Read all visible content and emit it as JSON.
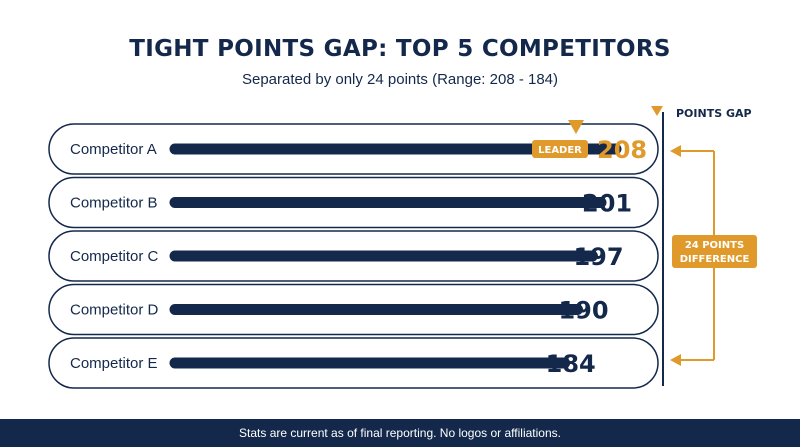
{
  "title": "TIGHT POINTS GAP: TOP 5 COMPETITORS",
  "subtitle": "Separated by only 24 points (Range: 208 - 184)",
  "footer": "Stats are current as of final reporting. No logos or affiliations.",
  "gap_panel": {
    "title": "POINTS GAP",
    "label_line1": "24 POINTS",
    "label_line2": "DIFFERENCE"
  },
  "leader_badge": "LEADER",
  "colors": {
    "navy": "#14284b",
    "accent": "#e09a2c"
  },
  "chart_data": {
    "type": "bar",
    "orientation": "horizontal",
    "categories": [
      "Competitor A",
      "Competitor B",
      "Competitor C",
      "Competitor D",
      "Competitor E"
    ],
    "values": [
      208,
      201,
      197,
      190,
      184
    ],
    "highlight": "Competitor A",
    "title": "TIGHT POINTS GAP: TOP 5 COMPETITORS",
    "subtitle": "Separated by only 24 points (Range: 208 - 184)",
    "xlabel": "",
    "ylabel": ""
  }
}
